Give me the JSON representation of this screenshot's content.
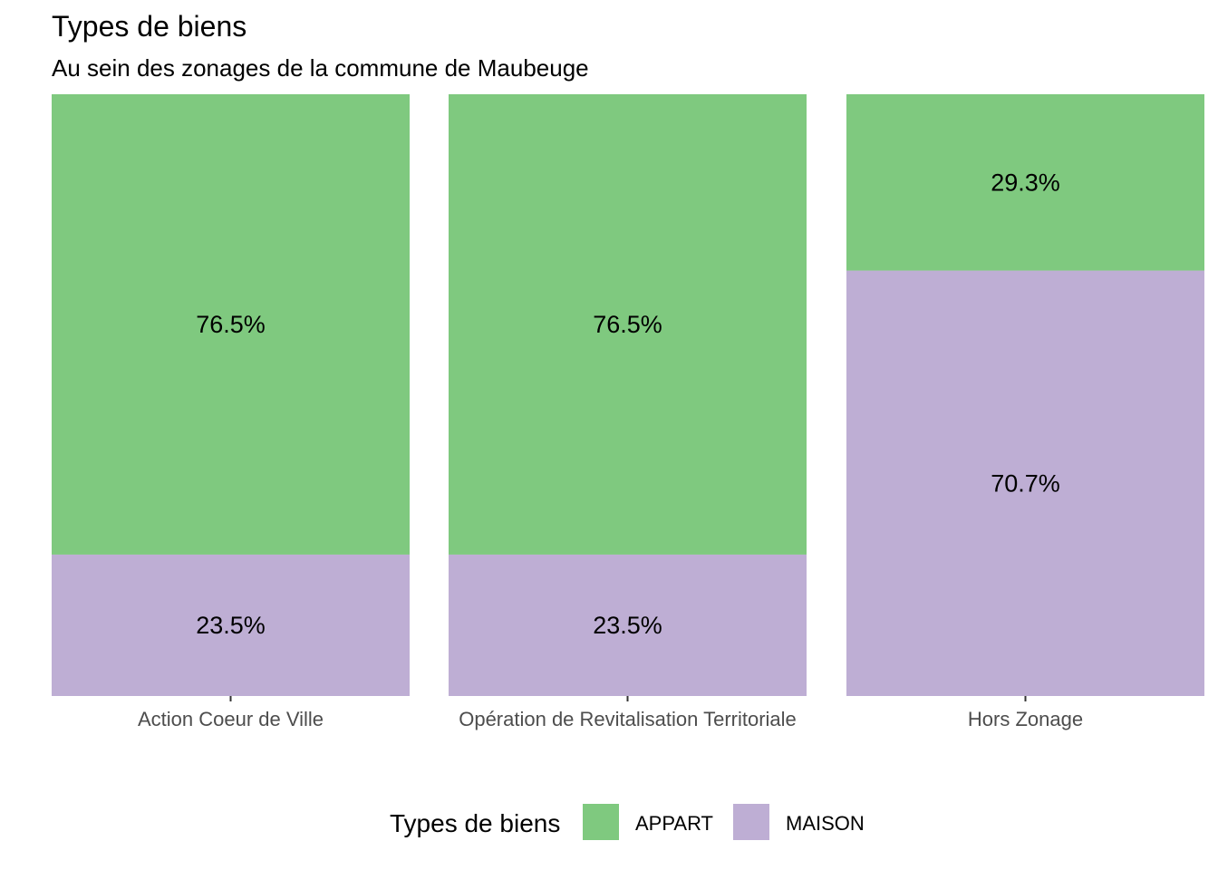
{
  "chart_data": {
    "type": "bar",
    "stacked": true,
    "normalized": true,
    "title": "Types de biens",
    "subtitle": "Au sein des zonages de la commune de Maubeuge",
    "categories": [
      "Action Coeur de Ville",
      "Opération de Revitalisation Territoriale",
      "Hors Zonage"
    ],
    "series": [
      {
        "name": "APPART",
        "color": "#7fc97f",
        "values": [
          76.5,
          76.5,
          29.3
        ],
        "labels": [
          "76.5%",
          "76.5%",
          "29.3%"
        ]
      },
      {
        "name": "MAISON",
        "color": "#beaed4",
        "values": [
          23.5,
          23.5,
          70.7
        ],
        "labels": [
          "23.5%",
          "23.5%",
          "70.7%"
        ]
      }
    ],
    "stack_order_top_to_bottom": [
      "APPART",
      "MAISON"
    ],
    "ylim": [
      0,
      100
    ],
    "y_axis_shown": false,
    "grid": false,
    "legend": {
      "title": "Types de biens",
      "position": "bottom"
    }
  }
}
